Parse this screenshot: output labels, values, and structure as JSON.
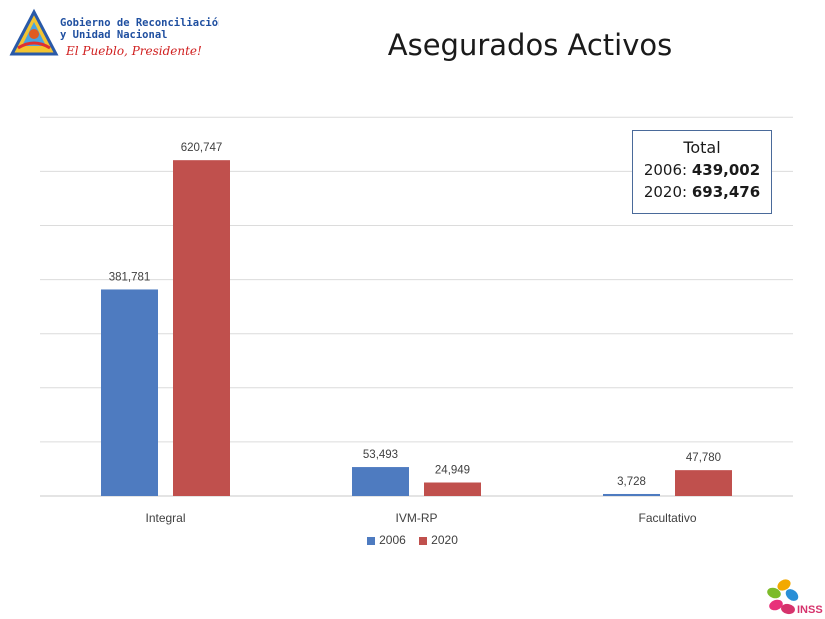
{
  "header": {
    "logo_line1": "Gobierno de Reconciliación",
    "logo_line2": "y Unidad Nacional",
    "logo_slogan": "El Pueblo, Presidente!"
  },
  "title": "Asegurados Activos",
  "chart_data": {
    "type": "bar",
    "title": "Asegurados Activos",
    "categories": [
      "Integral",
      "IVM-RP",
      "Facultativo"
    ],
    "series": [
      {
        "name": "2006",
        "values": [
          381781,
          53493,
          3728
        ],
        "labels": [
          "381,781",
          "53,493",
          "3,728"
        ],
        "color": "#4e7bc0"
      },
      {
        "name": "2020",
        "values": [
          620747,
          24949,
          47780
        ],
        "labels": [
          "620,747",
          "24,949",
          "47,780"
        ],
        "color": "#c0504d"
      }
    ],
    "ylim": [
      0,
      700000
    ],
    "grid": true,
    "legend": "bottom-center",
    "xlabel": "",
    "ylabel": ""
  },
  "totals": {
    "heading": "Total",
    "rows": [
      {
        "label": "2006: ",
        "value": "439,002"
      },
      {
        "label": "2020: ",
        "value": "693,476"
      }
    ]
  },
  "footer": {
    "logo_text": "INSS"
  }
}
